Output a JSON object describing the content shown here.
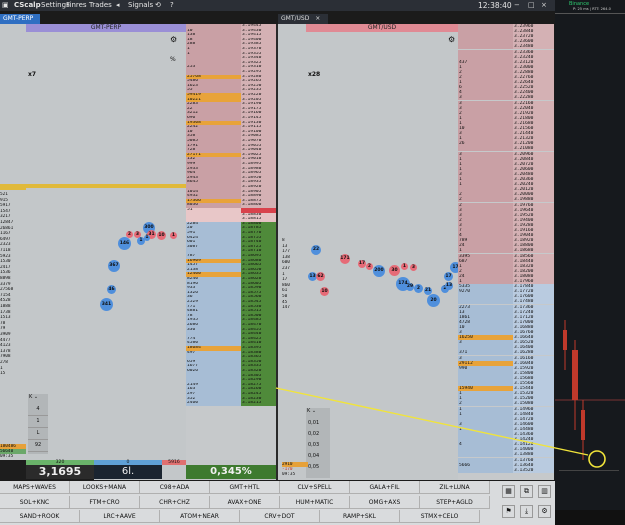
{
  "titlebar": {
    "app_name": "CScalp",
    "menu": [
      "Settings",
      "Finres",
      "Trades"
    ],
    "signals": "Signals",
    "time": "12:38:40",
    "minus": "−",
    "max": "□",
    "close": "×"
  },
  "bg_app": {
    "exchange": "Binance",
    "ping": "P: 25 ms | RTT: 264.0"
  },
  "left_panel": {
    "tab": "GMT-PERP",
    "header": "GMT-PERP",
    "multiplier": "x7",
    "pct_symbol": "%",
    "side_numbers": [
      "521",
      "915",
      "5917",
      "1547",
      "3217",
      "12847",
      "26861",
      "1167",
      "6497",
      "2323",
      "7118",
      "5923",
      "1530",
      "2417",
      "1536",
      "8898",
      "3379",
      "27568",
      "7154",
      "4528",
      "1888",
      "1738",
      "1513",
      "78",
      "79",
      "3909",
      "4477",
      "4123",
      "1378",
      "7908",
      "278",
      "1",
      "15"
    ],
    "bottom_side": [
      "180486",
      "56640",
      "09:35"
    ],
    "leverage_values": [
      "4",
      "1",
      "L",
      "92"
    ],
    "footer": {
      "price": "3,1695",
      "zero": "0",
      "lot": "6l.",
      "pct": "0,345%",
      "vol_left": "320",
      "vol_right": "5916"
    },
    "asks": [
      [
        "",
        "3.19445"
      ],
      [
        "10",
        "3.19430"
      ],
      [
        "138",
        "3.19415"
      ],
      [
        "18",
        "3.19400"
      ],
      [
        "288",
        "3.19385"
      ],
      [
        "1",
        "3.19370"
      ],
      [
        "1",
        "3.19355"
      ],
      [
        "",
        "3.19340"
      ],
      [
        "",
        "3.19325"
      ],
      [
        "253",
        "3.19310"
      ],
      [
        "",
        "3.19295"
      ],
      [
        "25768",
        "3.19280"
      ],
      [
        "5486",
        "3.19265"
      ],
      [
        "1623",
        "3.19250"
      ],
      [
        "55",
        "3.19235"
      ],
      [
        "59419",
        "3.19220"
      ],
      [
        "10221",
        "3.19205"
      ],
      [
        "2283",
        "3.19190"
      ],
      [
        "22",
        "3.19175"
      ],
      [
        "3212",
        "3.19160"
      ],
      [
        "696",
        "3.19145"
      ],
      [
        "19308",
        "3.19130"
      ],
      [
        "2242",
        "3.19115"
      ],
      [
        "10",
        "3.19100"
      ],
      [
        "358",
        "3.19085"
      ],
      [
        "5085",
        "3.19070"
      ],
      [
        "1791",
        "3.19055"
      ],
      [
        "728",
        "3.19040"
      ],
      [
        "27171",
        "3.19025"
      ],
      [
        "132",
        "3.19010"
      ],
      [
        "999",
        "3.18995"
      ],
      [
        "2933",
        "3.18980"
      ],
      [
        "964",
        "3.18965"
      ],
      [
        "2943",
        "3.18950"
      ],
      [
        "8645",
        "3.18935"
      ],
      [
        "",
        "3.18920"
      ],
      [
        "1014",
        "3.18905"
      ],
      [
        "4932",
        "3.18890"
      ],
      [
        "17366",
        "3.18875"
      ],
      [
        "8036",
        "3.18860"
      ]
    ],
    "spread_rows": [
      [
        "51",
        "3.18845"
      ],
      [
        "",
        "3.18830"
      ],
      [
        "",
        "3.18815"
      ]
    ],
    "bids": [
      [
        "2284",
        "3.18800"
      ],
      [
        "20",
        "3.18785"
      ],
      [
        "591",
        "3.18770"
      ],
      [
        "6424",
        "3.18755"
      ],
      [
        "601",
        "3.18740"
      ],
      [
        "3087",
        "3.18725"
      ],
      [
        "",
        "3.18710"
      ],
      [
        "787",
        "3.18695"
      ],
      [
        "16909",
        "3.18680"
      ],
      [
        "1457",
        "3.18665"
      ],
      [
        "2138",
        "3.18650"
      ],
      [
        "12400",
        "3.18635"
      ],
      [
        "8240",
        "3.18620"
      ],
      [
        "8196",
        "3.18605"
      ],
      [
        "933",
        "3.18590"
      ],
      [
        "1326",
        "3.18575"
      ],
      [
        "36",
        "3.18560"
      ],
      [
        "2529",
        "3.18545"
      ],
      [
        "771",
        "3.18530"
      ],
      [
        "4881",
        "3.18515"
      ],
      [
        "78",
        "3.18500"
      ],
      [
        "1935",
        "3.18485"
      ],
      [
        "2686",
        "3.18470"
      ],
      [
        "336",
        "3.18455"
      ],
      [
        "",
        "3.18440"
      ],
      [
        "774",
        "3.18425"
      ],
      [
        "4580",
        "3.18410"
      ],
      [
        "18684",
        "3.18395"
      ],
      [
        "497",
        "3.18380"
      ],
      [
        "",
        "3.18365"
      ],
      [
        "659",
        "3.18350"
      ],
      [
        "1677",
        "3.18335"
      ],
      [
        "6026",
        "3.18320"
      ],
      [
        "",
        "3.18305"
      ],
      [
        "",
        "3.18290"
      ],
      [
        "2149",
        "3.18275"
      ],
      [
        "163",
        "3.18260"
      ],
      [
        "297",
        "3.18245"
      ],
      [
        "352",
        "3.18230"
      ],
      [
        "2460",
        "3.18215"
      ]
    ],
    "bubbles": [
      "300",
      "2",
      "3",
      "31",
      "10",
      "1",
      "146",
      "1",
      "1",
      "367",
      "46",
      "341"
    ]
  },
  "right_panel": {
    "tab": "GMT/USD",
    "header": "GMT/USD",
    "multiplier": "x28",
    "close": "×",
    "side_numbers": [
      "8",
      "13",
      "177",
      "138",
      "600",
      "237",
      "1",
      "17",
      "860",
      "61",
      "50",
      "45",
      "147"
    ],
    "mid_side": [
      "2910",
      "-170",
      "09:35"
    ],
    "mini_values": [
      "0,01",
      "0,02",
      "0,03",
      "0,04",
      "0,05"
    ],
    "asks": [
      [
        "",
        "3.23960"
      ],
      [
        "",
        "3.23840"
      ],
      [
        "",
        "3.23720"
      ],
      [
        "",
        "3.23600"
      ],
      [
        "",
        "3.23480"
      ],
      [
        "",
        "3.23360"
      ],
      [
        "",
        "3.23240"
      ],
      [
        "437",
        "3.23120"
      ],
      [
        "1",
        "3.23000"
      ],
      [
        "2",
        "3.22880"
      ],
      [
        "2",
        "3.22760"
      ],
      [
        "1",
        "3.22640"
      ],
      [
        "6",
        "3.22520"
      ],
      [
        "4",
        "3.22400"
      ],
      [
        "3",
        "3.22280"
      ],
      [
        "3",
        "3.22160"
      ],
      [
        "3",
        "3.22040"
      ],
      [
        "2",
        "3.21920"
      ],
      [
        "1",
        "3.21800"
      ],
      [
        "1",
        "3.21680"
      ],
      [
        "10",
        "3.21560"
      ],
      [
        "3",
        "3.21440"
      ],
      [
        "1",
        "3.21320"
      ],
      [
        "26",
        "3.21200"
      ],
      [
        "",
        "3.21080"
      ],
      [
        "3",
        "3.20960"
      ],
      [
        "1",
        "3.20840"
      ],
      [
        "1",
        "3.20720"
      ],
      [
        "1",
        "3.20600"
      ],
      [
        "3",
        "3.20480"
      ],
      [
        "1",
        "3.20360"
      ],
      [
        "1",
        "3.20240"
      ],
      [
        "",
        "3.20120"
      ],
      [
        "2",
        "3.20000"
      ],
      [
        "2",
        "3.19880"
      ],
      [
        "2",
        "3.19760"
      ],
      [
        "3",
        "3.19640"
      ],
      [
        "3",
        "3.19520"
      ],
      [
        "2",
        "3.19400"
      ],
      [
        "3",
        "3.19280"
      ],
      [
        "7",
        "3.19160"
      ],
      [
        "4",
        "3.19040"
      ],
      [
        "789",
        "3.18920"
      ],
      [
        "24",
        "3.18800"
      ],
      [
        "1",
        "3.18680"
      ],
      [
        "3395",
        "3.18560"
      ],
      [
        "687",
        "3.18440"
      ],
      [
        "1",
        "3.18320"
      ],
      [
        "2",
        "3.18200"
      ],
      [
        "24",
        "3.18080"
      ],
      [
        "1",
        "3.17960"
      ]
    ],
    "bids": [
      [
        "5335",
        "3.17840"
      ],
      [
        "9270",
        "3.17720"
      ],
      [
        "",
        "3.17600"
      ],
      [
        "",
        "3.17480"
      ],
      [
        "2273",
        "3.17360"
      ],
      [
        "13",
        "3.17240"
      ],
      [
        "1861",
        "3.17120"
      ],
      [
        "4728",
        "3.17000"
      ],
      [
        "10",
        "3.16880"
      ],
      [
        "3",
        "3.16760"
      ],
      [
        "16250",
        "3.16640"
      ],
      [
        "3",
        "3.16520"
      ],
      [
        "",
        "3.16400"
      ],
      [
        "371",
        "3.16280"
      ],
      [
        "3",
        "3.16160"
      ],
      [
        "29112",
        "3.16040"
      ],
      [
        "990",
        "3.15920"
      ],
      [
        "",
        "3.15800"
      ],
      [
        "",
        "3.15680"
      ],
      [
        "",
        "3.15560"
      ],
      [
        "15940",
        "3.15440"
      ],
      [
        "1",
        "3.15320"
      ],
      [
        "1",
        "3.15200"
      ],
      [
        "2",
        "3.15080"
      ],
      [
        "1",
        "3.14960"
      ],
      [
        "1",
        "3.14840"
      ],
      [
        "",
        "3.14720"
      ],
      [
        "3",
        "3.14600"
      ],
      [
        "1",
        "3.14480"
      ],
      [
        "",
        "3.14360"
      ],
      [
        "",
        "3.14240"
      ],
      [
        "4",
        "3.14120"
      ],
      [
        "",
        "3.14000"
      ],
      [
        "",
        "3.13880"
      ],
      [
        "",
        "3.13760"
      ],
      [
        "5666",
        "3.13640"
      ],
      [
        "",
        "3.13520"
      ]
    ],
    "bubbles": [
      "17",
      "22",
      "171",
      "17",
      "2",
      "200",
      "30",
      "1",
      "3",
      "13",
      "62",
      "10",
      "174",
      "29",
      "2",
      "21",
      "20",
      "2",
      "13",
      "17"
    ]
  },
  "bottom_buttons": [
    "MAPS+WAVES",
    "LOOKS+MANA",
    "C98+ADA",
    "GMT+HTL",
    "CLV+SPELL",
    "GALA+FIL",
    "ZIL+LUNA",
    "SOL+KNC",
    "FTM+CRO",
    "CHR+CHZ",
    "AVAX+ONE",
    "HUM+MATIC",
    "OMG+AXS",
    "STEP+AGLD",
    "SAND+ROOK",
    "LRC+AAVE",
    "ATOM+NEAR",
    "CRV+DOT",
    "RAMP+SKL",
    "STMX+CELO"
  ],
  "tool_icons": [
    "grid-icon",
    "split-icon",
    "layout-icon",
    "filter-icon",
    "export-icon",
    "gear-icon"
  ],
  "colors": {
    "ask_bar": "#c9a0a5",
    "bid_bar": "#a7bdd5",
    "green_bar": "#4f8a3a",
    "highlight": "#e8a33a",
    "ask_bubble": "#e66b77",
    "bid_bubble": "#4f8fdc",
    "spread_red": "#d9424c"
  }
}
